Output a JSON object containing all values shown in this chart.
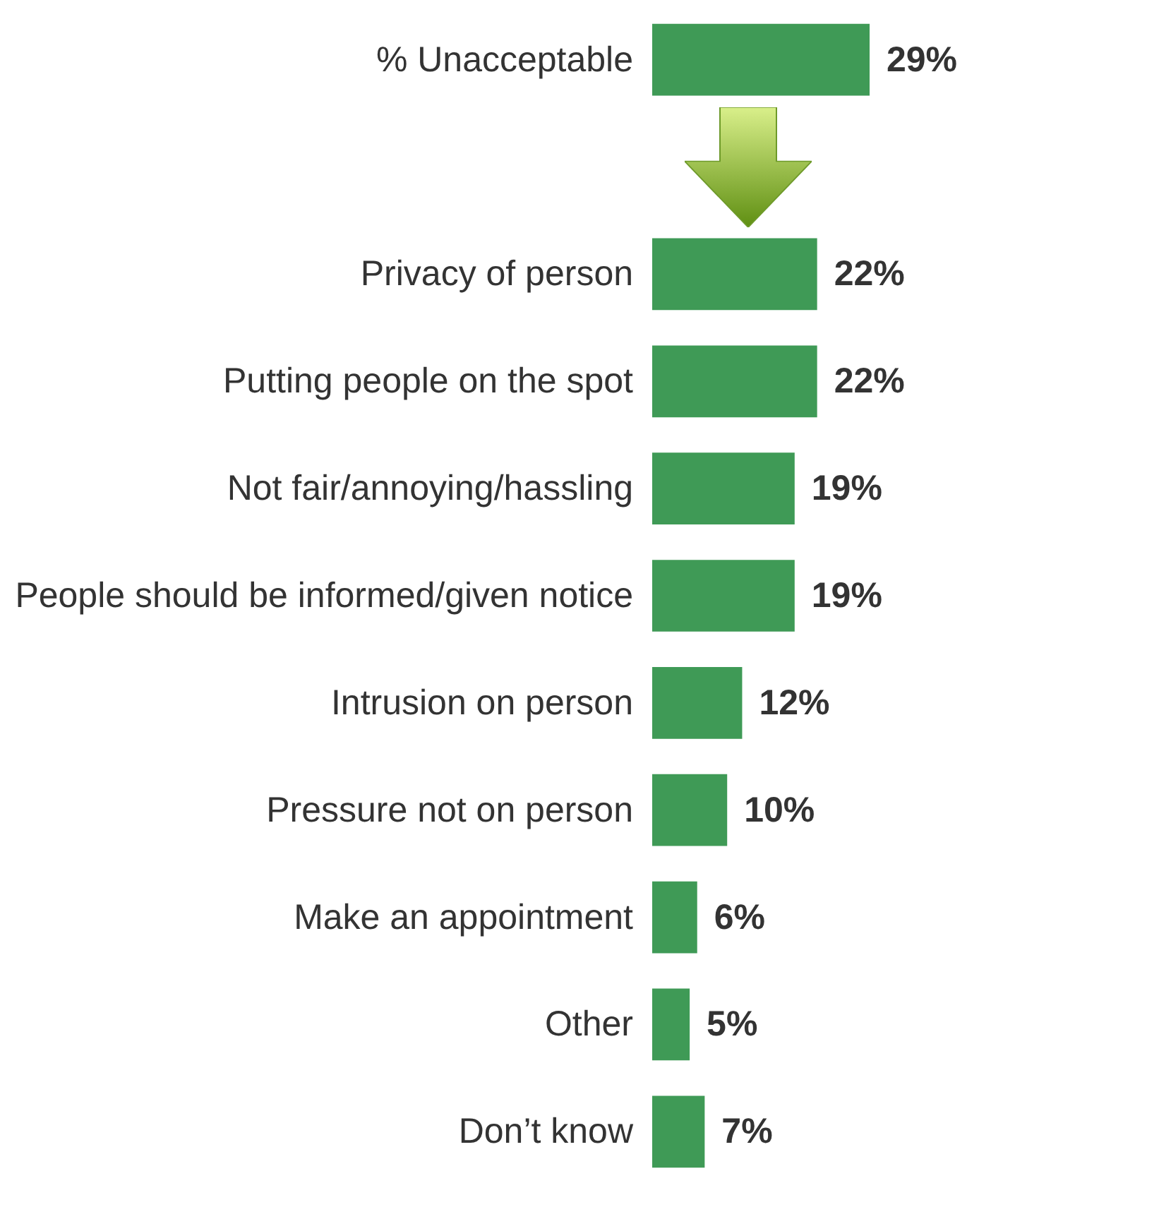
{
  "chart_data": {
    "type": "bar",
    "orientation": "horizontal",
    "categories": [
      "% Unacceptable",
      null,
      "Privacy of person",
      "Putting people on the spot",
      "Not fair/annoying/hassling",
      "People should be informed/given notice",
      "Intrusion on person",
      "Pressure not on person",
      "Make an appointment",
      "Other",
      "Don’t know"
    ],
    "values": [
      29,
      null,
      22,
      22,
      19,
      19,
      12,
      10,
      6,
      5,
      7
    ],
    "value_labels": [
      "29%",
      null,
      "22%",
      "22%",
      "19%",
      "19%",
      "12%",
      "10%",
      "6%",
      "5%",
      "7%"
    ],
    "color": "#3f9a56"
  }
}
